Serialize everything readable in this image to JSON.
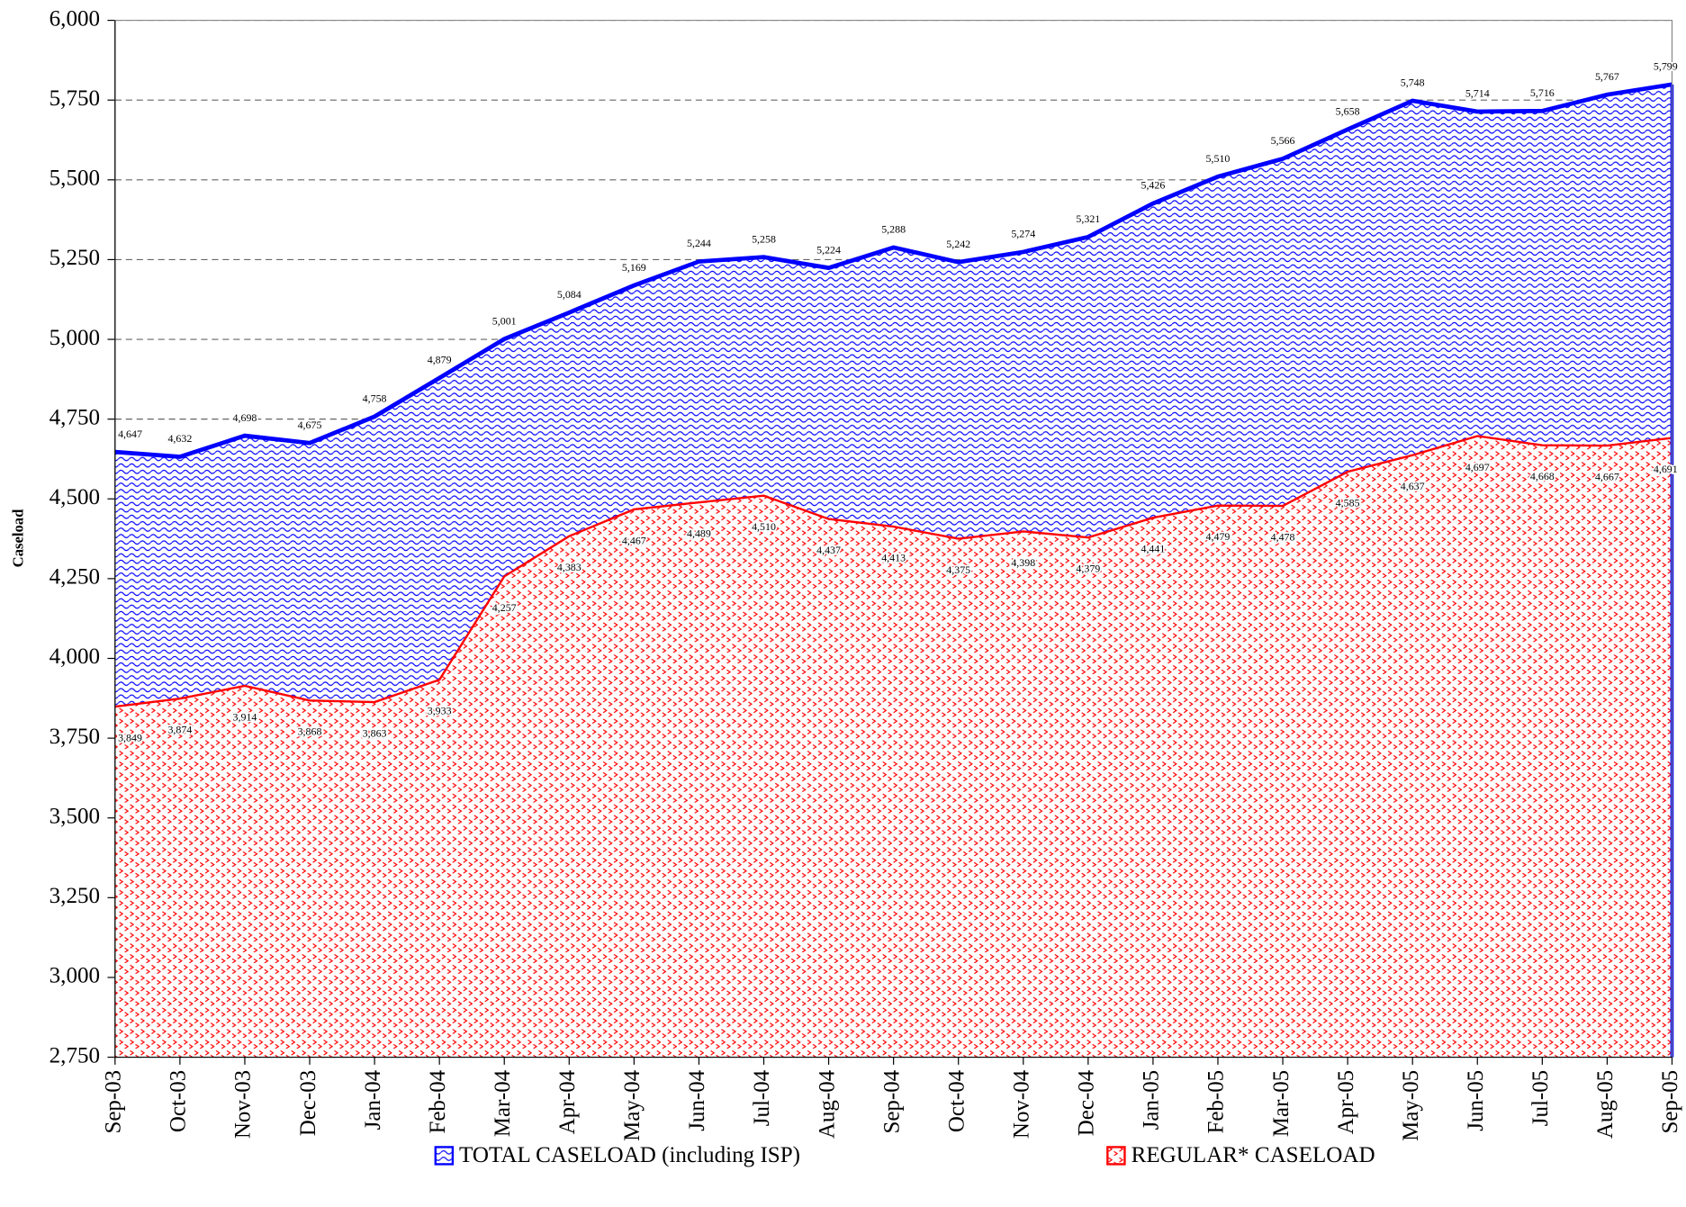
{
  "chart_data": {
    "type": "area",
    "y_label": "Caseload",
    "categories": [
      "Sep-03",
      "Oct-03",
      "Nov-03",
      "Dec-03",
      "Jan-04",
      "Feb-04",
      "Mar-04",
      "Apr-04",
      "May-04",
      "Jun-04",
      "Jul-04",
      "Aug-04",
      "Sep-04",
      "Oct-04",
      "Nov-04",
      "Dec-04",
      "Jan-05",
      "Feb-05",
      "Mar-05",
      "Apr-05",
      "May-05",
      "Jun-05",
      "Jul-05",
      "Aug-05",
      "Sep-05"
    ],
    "series": [
      {
        "name": "TOTAL CASELOAD (including ISP)",
        "color": "#0000ff",
        "values": [
          4647,
          4632,
          4698,
          4675,
          4758,
          4879,
          5001,
          5084,
          5169,
          5244,
          5258,
          5224,
          5288,
          5242,
          5274,
          5321,
          5426,
          5510,
          5566,
          5658,
          5748,
          5714,
          5716,
          5767,
          5799
        ],
        "value_labels": [
          "4,647",
          "4,632",
          "4,698",
          "4,675",
          "4,758",
          "4,879",
          "5,001",
          "5,084",
          "5,169",
          "5,244",
          "5,258",
          "5,224",
          "5,288",
          "5,242",
          "5,274",
          "5,321",
          "5,426",
          "5,510",
          "5,566",
          "5,658",
          "5,748",
          "5,714",
          "5,716",
          "5,767",
          "5,799"
        ]
      },
      {
        "name": "REGULAR* CASELOAD",
        "color": "#ff0000",
        "values": [
          3849,
          3874,
          3914,
          3868,
          3863,
          3933,
          4257,
          4383,
          4467,
          4489,
          4510,
          4437,
          4413,
          4375,
          4398,
          4379,
          4441,
          4479,
          4478,
          4585,
          4637,
          4697,
          4668,
          4667,
          4691
        ],
        "value_labels": [
          "3,849",
          "3,874",
          "3,914",
          "3,868",
          "3,863",
          "3,933",
          "4,257",
          "4,383",
          "4,467",
          "4,489",
          "4,510",
          "4,437",
          "4,413",
          "4,375",
          "4,398",
          "4,379",
          "4,441",
          "4,479",
          "4,478",
          "4,585",
          "4,637",
          "4,697",
          "4,668",
          "4,667",
          "4,691"
        ]
      }
    ],
    "ylim": [
      2750,
      6000
    ],
    "yticks": [
      {
        "value": 2750,
        "label": "2,750"
      },
      {
        "value": 3000,
        "label": "3,000"
      },
      {
        "value": 3250,
        "label": "3,250"
      },
      {
        "value": 3500,
        "label": "3,500"
      },
      {
        "value": 3750,
        "label": "3,750"
      },
      {
        "value": 4000,
        "label": "4,000"
      },
      {
        "value": 4250,
        "label": "4,250"
      },
      {
        "value": 4500,
        "label": "4,500"
      },
      {
        "value": 4750,
        "label": "4,750"
      },
      {
        "value": 5000,
        "label": "5,000"
      },
      {
        "value": 5250,
        "label": "5,250"
      },
      {
        "value": 5500,
        "label": "5,500"
      },
      {
        "value": 5750,
        "label": "5,750"
      },
      {
        "value": 6000,
        "label": "6,000"
      }
    ],
    "grid": true
  }
}
